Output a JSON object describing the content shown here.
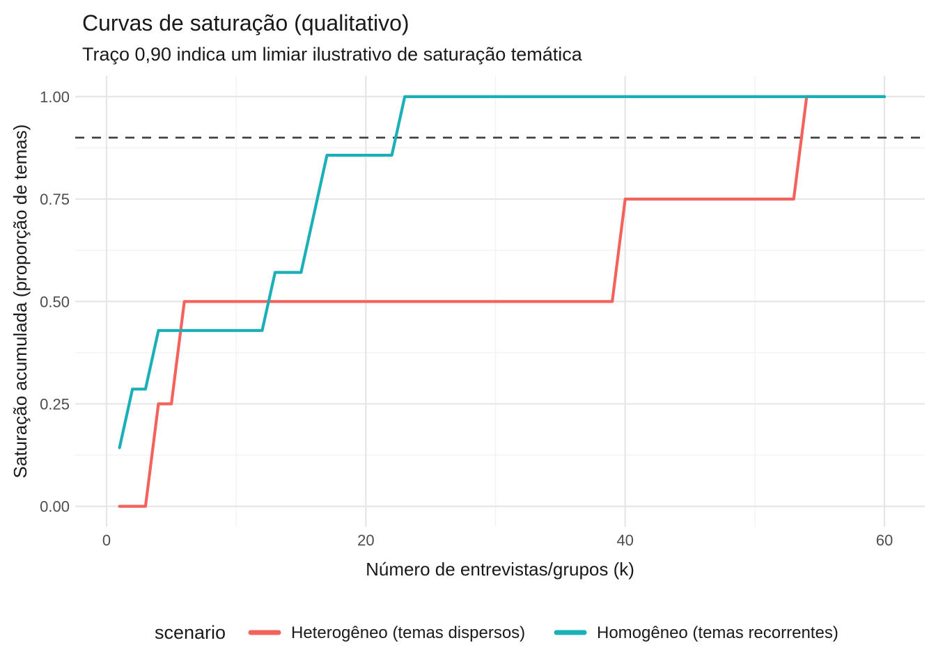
{
  "chart_data": {
    "type": "line",
    "variant": "step-saturation-curves",
    "title": "Curvas de saturação (qualitativo)",
    "subtitle": "Traço 0,90 indica um limiar ilustrativo de saturação temática",
    "xlabel": "Número de entrevistas/grupos (k)",
    "ylabel": "Saturação acumulada (proporção de temas)",
    "xlim": [
      0,
      60
    ],
    "ylim": [
      0,
      1
    ],
    "grid": "on",
    "x_ticks": {
      "values": [
        0,
        20,
        40,
        60
      ],
      "labels": [
        "0",
        "20",
        "40",
        "60"
      ]
    },
    "x_minor": [
      10,
      30,
      50
    ],
    "y_ticks": {
      "values": [
        0,
        0.25,
        0.5,
        0.75,
        1
      ],
      "labels": [
        "0.00",
        "0.25",
        "0.50",
        "0.75",
        "1.00"
      ]
    },
    "y_minor": [
      0.125,
      0.375,
      0.625,
      0.875
    ],
    "threshold_line": {
      "y": 0.9,
      "style": "dashed",
      "color": "#3c3c3c"
    },
    "legend": {
      "title": "scenario",
      "position": "bottom"
    },
    "series": [
      {
        "name": "Heterogêneo (temas dispersos)",
        "color": "#f4625c",
        "points": [
          [
            1,
            0
          ],
          [
            2,
            0
          ],
          [
            3,
            0
          ],
          [
            4,
            0.25
          ],
          [
            5,
            0.25
          ],
          [
            6,
            0.5
          ],
          [
            39,
            0.5
          ],
          [
            40,
            0.75
          ],
          [
            53,
            0.75
          ],
          [
            54,
            1.0
          ],
          [
            60,
            1.0
          ]
        ]
      },
      {
        "name": "Homogêneo (temas recorrentes)",
        "color": "#1bb0b8",
        "points": [
          [
            1,
            0.143
          ],
          [
            2,
            0.286
          ],
          [
            3,
            0.286
          ],
          [
            4,
            0.429
          ],
          [
            12,
            0.429
          ],
          [
            13,
            0.571
          ],
          [
            15,
            0.571
          ],
          [
            16,
            0.714
          ],
          [
            17,
            0.857
          ],
          [
            22,
            0.857
          ],
          [
            23,
            1.0
          ],
          [
            60,
            1.0
          ]
        ]
      }
    ],
    "colors": {
      "grid_major": "#e6e6e6",
      "grid_minor": "#f2f2f2",
      "tick_text": "#4d4d4d",
      "title_text": "#1a1a1a",
      "background": "#ffffff"
    }
  }
}
